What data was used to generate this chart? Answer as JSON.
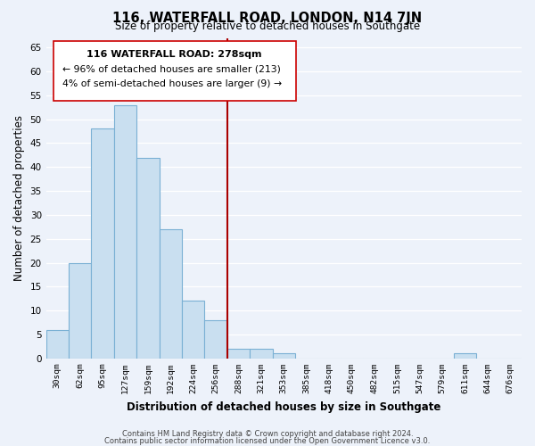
{
  "title": "116, WATERFALL ROAD, LONDON, N14 7JN",
  "subtitle": "Size of property relative to detached houses in Southgate",
  "xlabel": "Distribution of detached houses by size in Southgate",
  "ylabel": "Number of detached properties",
  "bar_labels": [
    "30sqm",
    "62sqm",
    "95sqm",
    "127sqm",
    "159sqm",
    "192sqm",
    "224sqm",
    "256sqm",
    "288sqm",
    "321sqm",
    "353sqm",
    "385sqm",
    "418sqm",
    "450sqm",
    "482sqm",
    "515sqm",
    "547sqm",
    "579sqm",
    "611sqm",
    "644sqm",
    "676sqm"
  ],
  "bar_values": [
    6,
    20,
    48,
    53,
    42,
    27,
    12,
    8,
    2,
    2,
    1,
    0,
    0,
    0,
    0,
    0,
    0,
    0,
    1,
    0,
    0
  ],
  "bar_color": "#c9dff0",
  "bar_edge_color": "#7ab0d4",
  "vline_x_idx": 7.5,
  "vline_color": "#aa0000",
  "ylim": [
    0,
    67
  ],
  "yticks": [
    0,
    5,
    10,
    15,
    20,
    25,
    30,
    35,
    40,
    45,
    50,
    55,
    60,
    65
  ],
  "annotation_title": "116 WATERFALL ROAD: 278sqm",
  "annotation_line1": "← 96% of detached houses are smaller (213)",
  "annotation_line2": "4% of semi-detached houses are larger (9) →",
  "footer_line1": "Contains HM Land Registry data © Crown copyright and database right 2024.",
  "footer_line2": "Contains public sector information licensed under the Open Government Licence v3.0.",
  "bg_color": "#edf2fa",
  "grid_color": "#ffffff"
}
